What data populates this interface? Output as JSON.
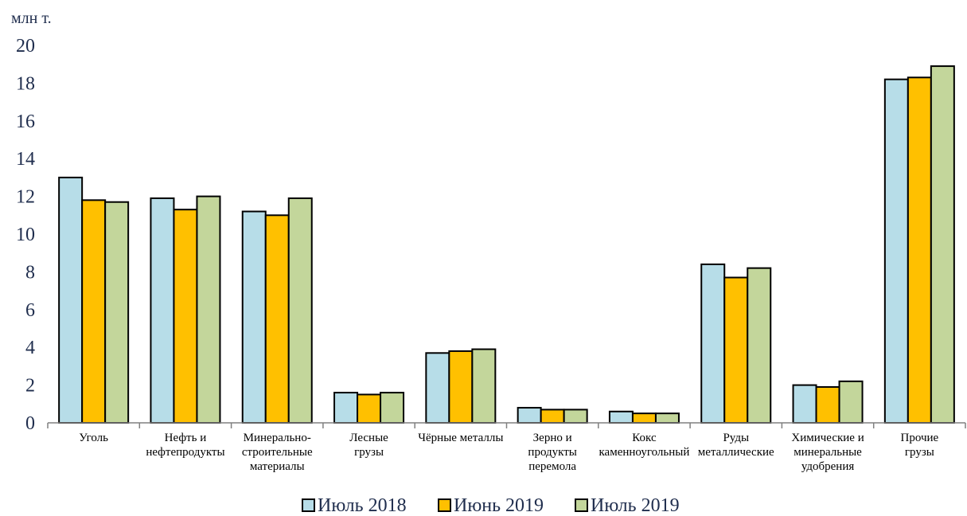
{
  "chart_data": {
    "type": "bar",
    "unit_label": "млн т.",
    "ylim": [
      0,
      20
    ],
    "yticks": [
      0,
      2,
      4,
      6,
      8,
      10,
      12,
      14,
      16,
      18,
      20
    ],
    "grid": false,
    "legend_position": "bottom",
    "categories": [
      [
        "Уголь"
      ],
      [
        "Нефть и",
        "нефтепродукты"
      ],
      [
        "Минерально-",
        "строительные",
        "материалы"
      ],
      [
        "Лесные",
        "грузы"
      ],
      [
        "Чёрные металлы"
      ],
      [
        "Зерно и",
        "продукты",
        "перемола"
      ],
      [
        "Кокс",
        "каменноугольный"
      ],
      [
        "Руды",
        "металлические"
      ],
      [
        "Химические и",
        "минеральные",
        "удобрения"
      ],
      [
        "Прочие",
        "грузы"
      ]
    ],
    "series": [
      {
        "name": "Июль 2018",
        "color": "#b7dde8",
        "values": [
          13.0,
          11.9,
          11.2,
          1.6,
          3.7,
          0.8,
          0.6,
          8.4,
          2.0,
          18.2
        ]
      },
      {
        "name": "Июнь 2019",
        "color": "#ffc000",
        "values": [
          11.8,
          11.3,
          11.0,
          1.5,
          3.8,
          0.7,
          0.5,
          7.7,
          1.9,
          18.3
        ]
      },
      {
        "name": "Июль 2019",
        "color": "#c3d69b",
        "values": [
          11.7,
          12.0,
          11.9,
          1.6,
          3.9,
          0.7,
          0.5,
          8.2,
          2.2,
          18.9
        ]
      }
    ]
  }
}
